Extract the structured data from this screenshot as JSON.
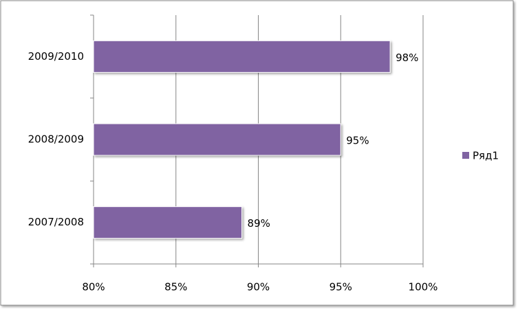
{
  "chart_data": {
    "type": "bar",
    "orientation": "horizontal",
    "categories": [
      "2007/2008",
      "2008/2009",
      "2009/2010"
    ],
    "series": [
      {
        "name": "Ряд1",
        "color": "#8064a2",
        "values": [
          89,
          95,
          98
        ],
        "value_labels": [
          "89%",
          "95%",
          "98%"
        ]
      }
    ],
    "xlim": [
      80,
      100
    ],
    "xticks": [
      {
        "value": 80,
        "label": "80%"
      },
      {
        "value": 85,
        "label": "85%"
      },
      {
        "value": 90,
        "label": "90%"
      },
      {
        "value": 95,
        "label": "95%"
      },
      {
        "value": 100,
        "label": "100%"
      }
    ],
    "grid": true,
    "legend": "right"
  }
}
